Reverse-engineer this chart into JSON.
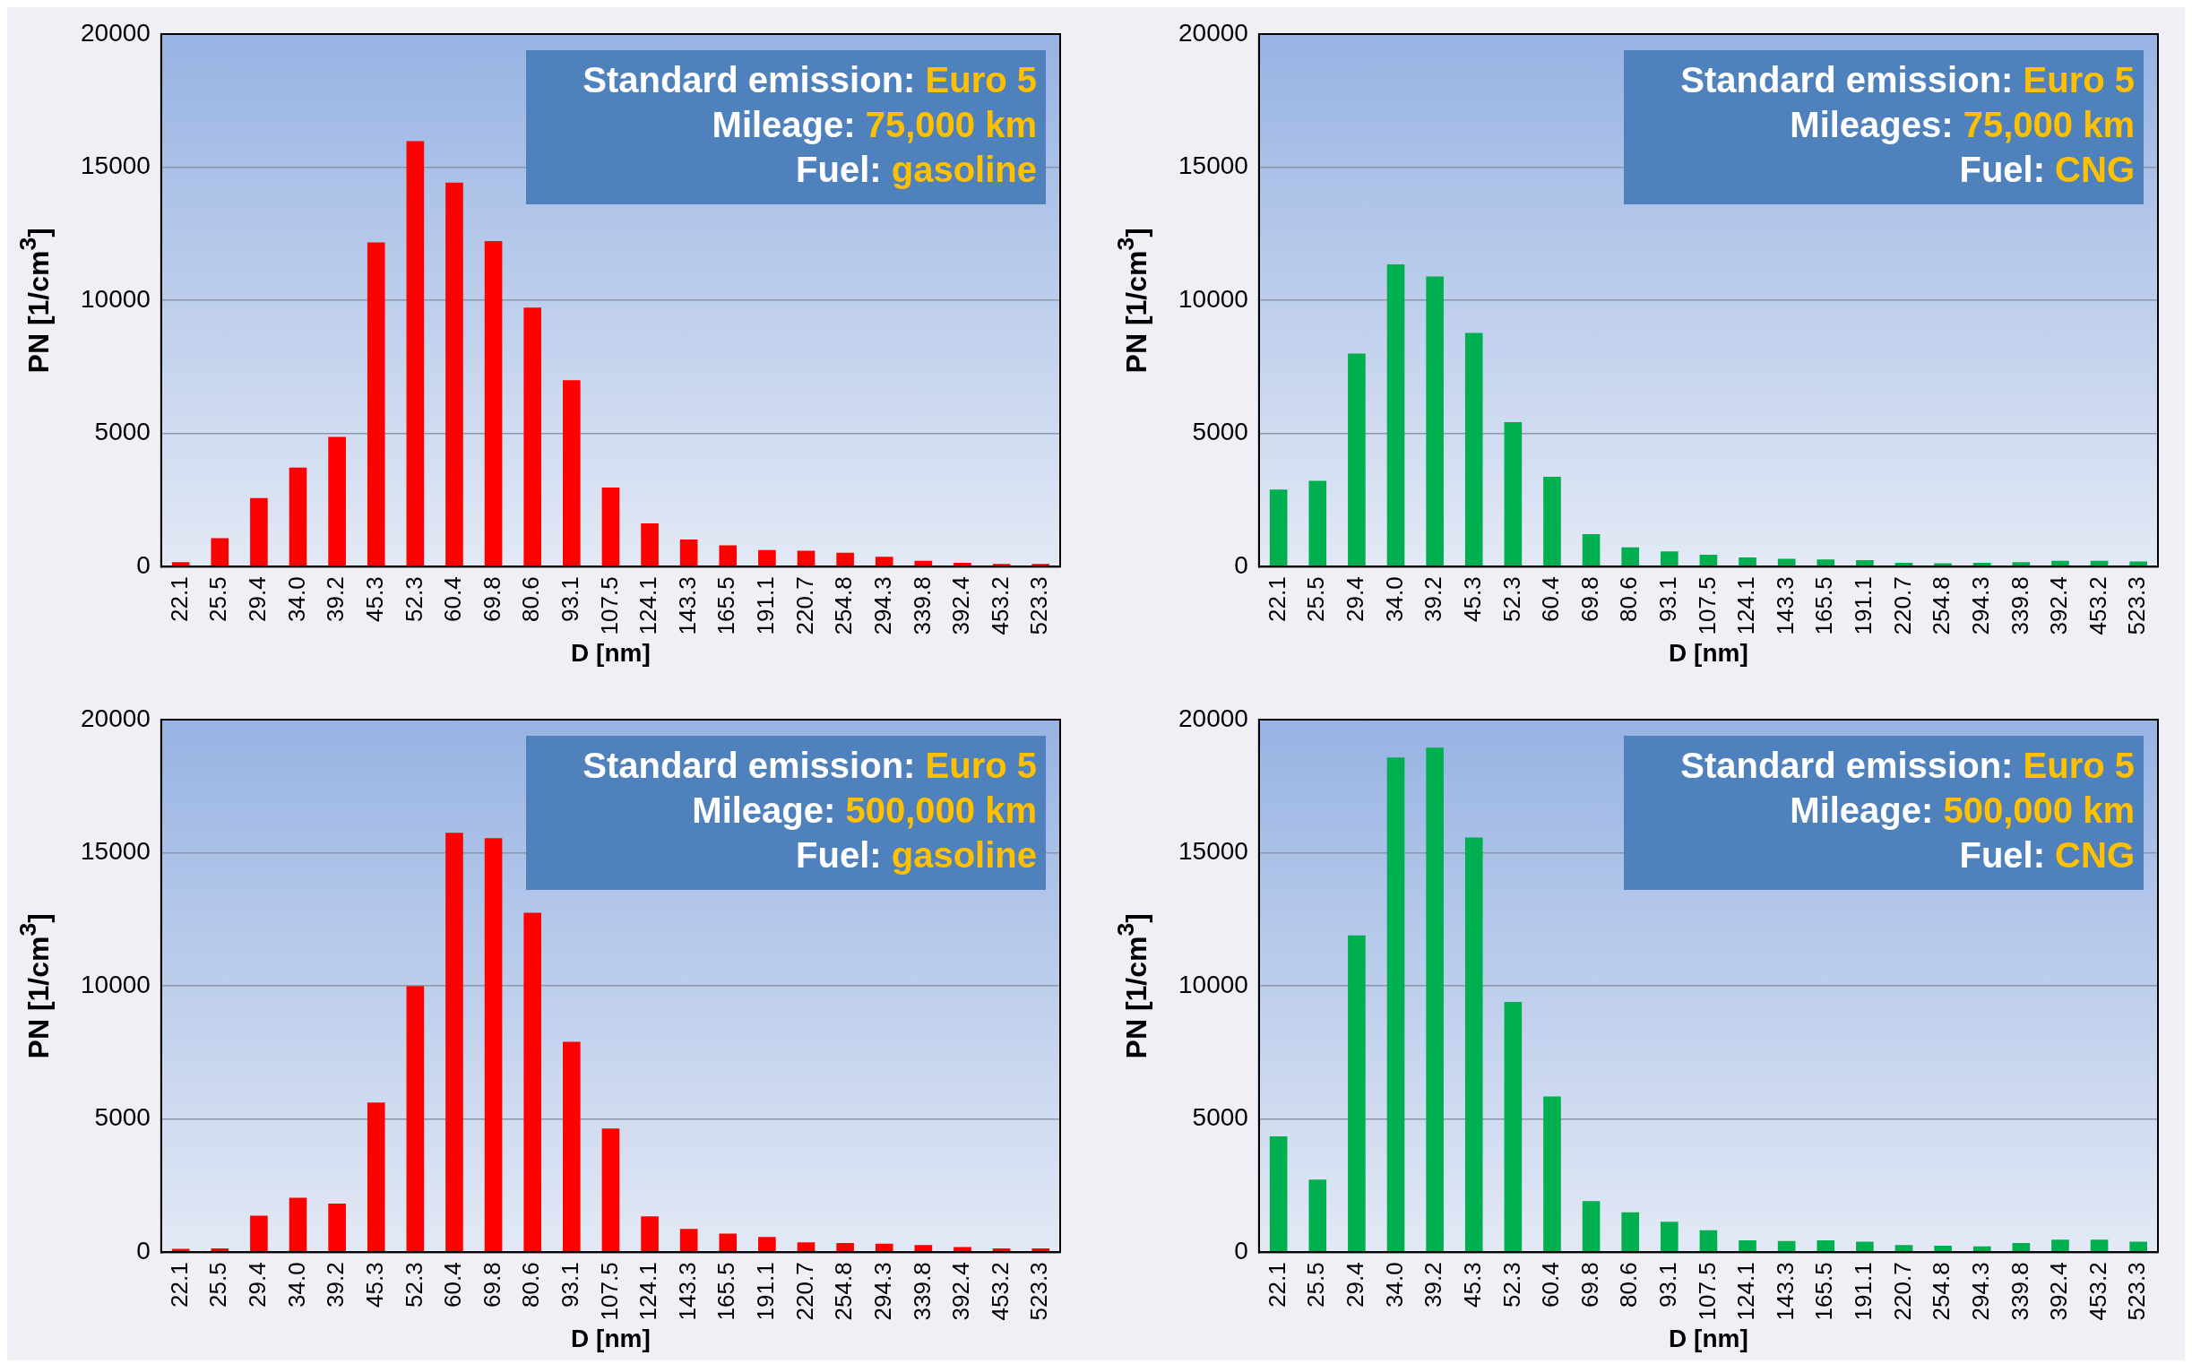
{
  "chart_data": [
    {
      "type": "bar",
      "categories": [
        "22.1",
        "25.5",
        "29.4",
        "34.0",
        "39.2",
        "45.3",
        "52.3",
        "60.4",
        "69.8",
        "80.6",
        "93.1",
        "107.5",
        "124.1",
        "143.3",
        "165.5",
        "191.1",
        "220.7",
        "254.8",
        "294.3",
        "339.8",
        "392.4",
        "453.2",
        "523.3"
      ],
      "values": [
        175,
        1075,
        2575,
        3725,
        4875,
        12175,
        15975,
        14425,
        12225,
        9725,
        7000,
        2975,
        1625,
        1025,
        800,
        625,
        600,
        525,
        375,
        225,
        150,
        100,
        100
      ],
      "color": "#ff0000",
      "xlabel": "D [nm]",
      "ylabel": "PN [1/cm$^{3}$]",
      "ylim": [
        0,
        20000
      ],
      "yticks": [
        0,
        5000,
        10000,
        15000,
        20000
      ],
      "grid": "y",
      "annotations": [
        "Standard emission: Euro 5",
        "Mileage: 75,000 km",
        "Fuel: gasoline"
      ]
    },
    {
      "type": "bar",
      "categories": [
        "22.1",
        "25.5",
        "29.4",
        "34.0",
        "39.2",
        "45.3",
        "52.3",
        "60.4",
        "69.8",
        "80.6",
        "93.1",
        "107.5",
        "124.1",
        "143.3",
        "165.5",
        "191.1",
        "220.7",
        "254.8",
        "294.3",
        "339.8",
        "392.4",
        "453.2",
        "523.3"
      ],
      "values": [
        2900,
        3225,
        8000,
        11350,
        10900,
        8775,
        5425,
        3375,
        1225,
        725,
        575,
        450,
        350,
        300,
        275,
        250,
        150,
        125,
        150,
        175,
        225,
        225,
        200
      ],
      "color": "#00b050",
      "xlabel": "D [nm]",
      "ylabel": "PN [1/cm$^{3}$]",
      "ylim": [
        0,
        20000
      ],
      "yticks": [
        0,
        5000,
        10000,
        15000,
        20000
      ],
      "grid": "y",
      "annotations": [
        "Standard emission: Euro 5",
        "Mileages: 75,000 km",
        "Fuel: CNG"
      ]
    },
    {
      "type": "bar",
      "categories": [
        "22.1",
        "25.5",
        "29.4",
        "34.0",
        "39.2",
        "45.3",
        "52.3",
        "60.4",
        "69.8",
        "80.6",
        "93.1",
        "107.5",
        "124.1",
        "143.3",
        "165.5",
        "191.1",
        "220.7",
        "254.8",
        "294.3",
        "339.8",
        "392.4",
        "453.2",
        "523.3"
      ],
      "values": [
        125,
        150,
        1375,
        2050,
        1825,
        5625,
        10000,
        15750,
        15550,
        12750,
        7900,
        4650,
        1350,
        875,
        700,
        575,
        375,
        350,
        325,
        275,
        200,
        150,
        150
      ],
      "color": "#ff0000",
      "xlabel": "D [nm]",
      "ylabel": "PN [1/cm$^{3}$]",
      "ylim": [
        0,
        20000
      ],
      "yticks": [
        0,
        5000,
        10000,
        15000,
        20000
      ],
      "grid": "y",
      "annotations": [
        "Standard emission: Euro 5",
        "Mileage: 500,000 km",
        "Fuel: gasoline"
      ]
    },
    {
      "type": "bar",
      "categories": [
        "22.1",
        "25.5",
        "29.4",
        "34.0",
        "39.2",
        "45.3",
        "52.3",
        "60.4",
        "69.8",
        "80.6",
        "93.1",
        "107.5",
        "124.1",
        "143.3",
        "165.5",
        "191.1",
        "220.7",
        "254.8",
        "294.3",
        "339.8",
        "392.4",
        "453.2",
        "523.3"
      ],
      "values": [
        4350,
        2725,
        11900,
        18575,
        18950,
        15575,
        9400,
        5850,
        1925,
        1500,
        1150,
        825,
        450,
        425,
        450,
        400,
        275,
        250,
        225,
        350,
        475,
        475,
        400
      ],
      "color": "#00b050",
      "xlabel": "D [nm]",
      "ylabel": "PN [1/cm$^{3}$]",
      "ylim": [
        0,
        20000
      ],
      "yticks": [
        0,
        5000,
        10000,
        15000,
        20000
      ],
      "grid": "y",
      "annotations": [
        "Standard emission: Euro 5",
        "Mileage: 500,000 km",
        "Fuel: CNG"
      ]
    }
  ]
}
